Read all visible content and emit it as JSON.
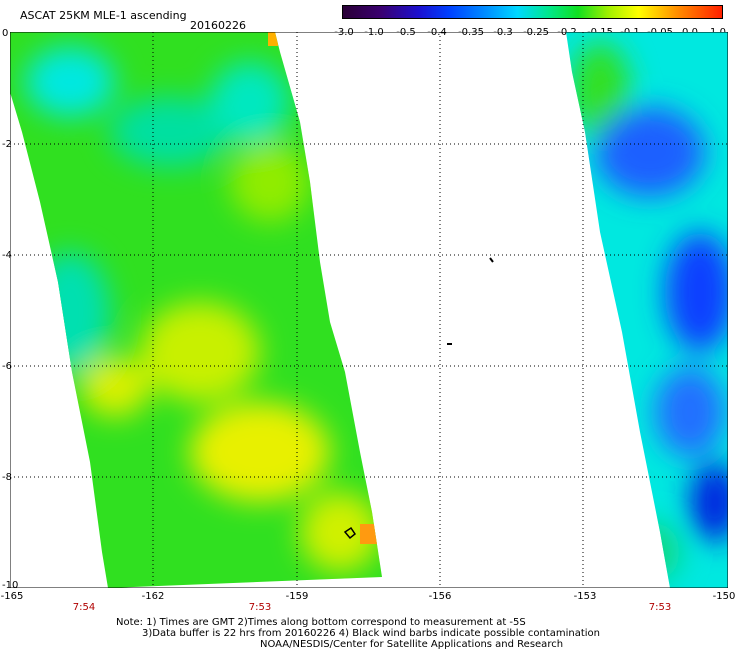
{
  "header": {
    "title": "ASCAT 25KM MLE-1 ascending",
    "date": "20160226"
  },
  "colorbar": {
    "ticks": [
      "-3.0",
      "-1.0",
      "-0.5",
      "-0.4",
      "-0.35",
      "-0.3",
      "-0.25",
      "-0.2",
      "-0.15",
      "-0.1",
      "-0.05",
      "0.0",
      "1.0"
    ]
  },
  "axes": {
    "y_labels": [
      "0",
      "-2",
      "-4",
      "-6",
      "-8",
      "-10"
    ],
    "x_labels": [
      "-165",
      "-162",
      "-159",
      "-156",
      "-153",
      "-150"
    ]
  },
  "times": [
    "7:54",
    "7:53",
    "7:53"
  ],
  "footer": {
    "line1": "Note: 1) Times are GMT 2)Times along bottom correspond to measurement at -5S",
    "line2": "3)Data buffer is 22 hrs from 20160226 4) Black wind barbs indicate possible contamination",
    "line3": "NOAA/NESDIS/Center for Satellite Applications and Research"
  },
  "colors": {
    "blue": "#1e50ff",
    "cyan": "#00e8e0",
    "teal": "#00e0a0",
    "green": "#30e020",
    "yellowgreen": "#b8f000",
    "yellow": "#f0f000",
    "orange": "#ff9000",
    "grid": "#000000"
  }
}
